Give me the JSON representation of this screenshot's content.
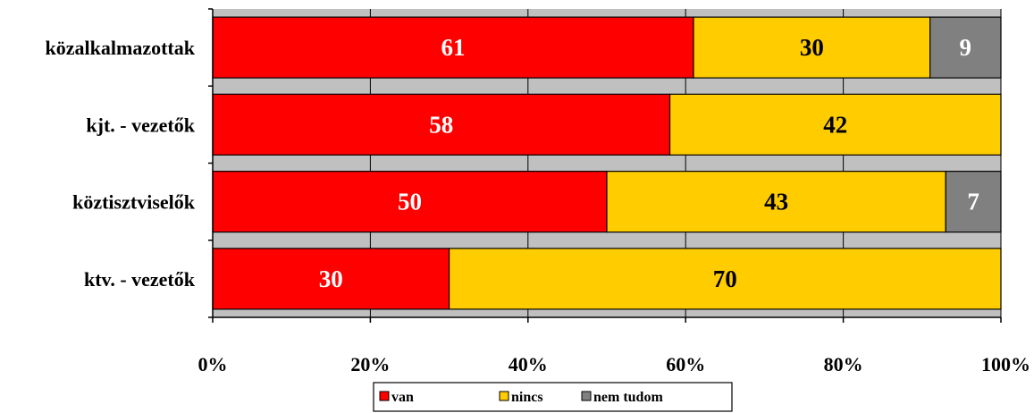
{
  "chart_data": {
    "type": "bar",
    "orientation": "horizontal",
    "stacked": true,
    "percent": true,
    "categories": [
      "közalkalmazottak",
      "kjt. - vezetők",
      "köztisztviselők",
      "ktv. - vezetők"
    ],
    "series": [
      {
        "name": "van",
        "color": "#ff0000",
        "label_color": "#ffffff",
        "values": [
          61,
          58,
          50,
          30
        ]
      },
      {
        "name": "nincs",
        "color": "#ffcc00",
        "label_color": "#000000",
        "values": [
          30,
          42,
          43,
          70
        ]
      },
      {
        "name": "nem tudom",
        "color": "#808080",
        "label_color": "#ffffff",
        "values": [
          9,
          0,
          7,
          0
        ]
      }
    ],
    "x_ticks": [
      "0%",
      "20%",
      "40%",
      "60%",
      "80%",
      "100%"
    ],
    "xlim": [
      0,
      100
    ],
    "grid": true,
    "plot_background": "#c0c0c0",
    "legend_position": "bottom"
  }
}
